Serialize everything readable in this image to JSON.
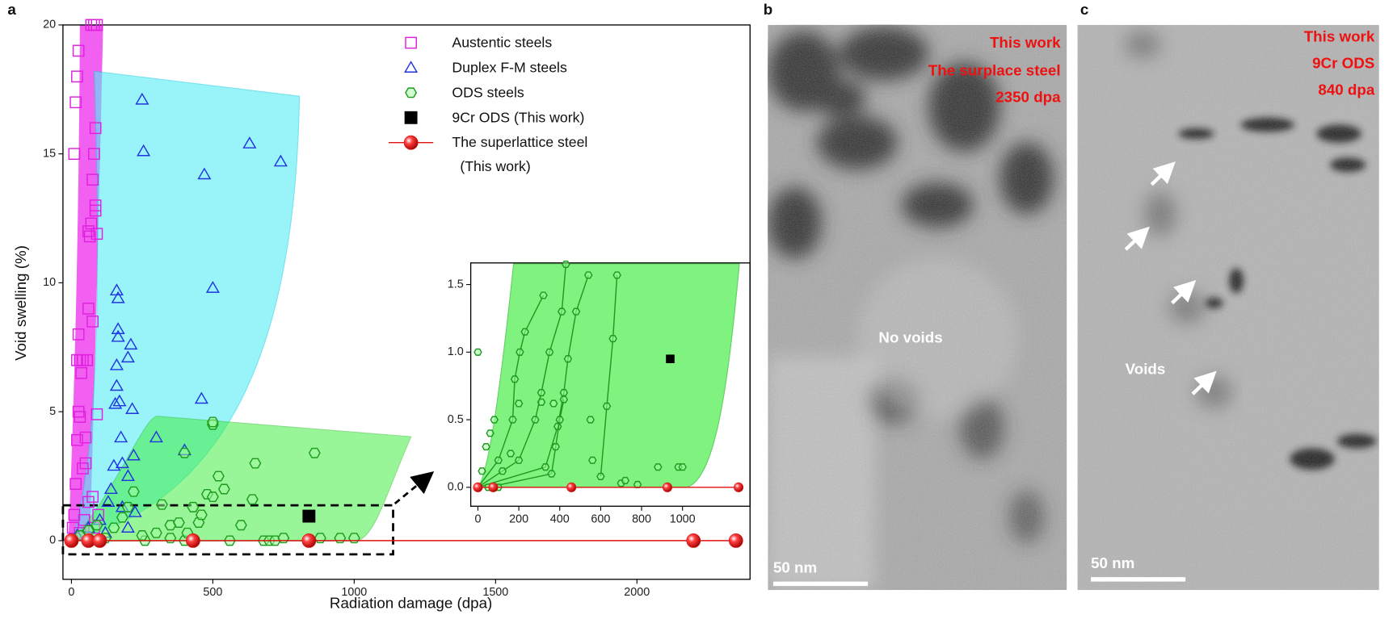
{
  "chart_data": [
    {
      "type": "scatter",
      "panel_label": "a",
      "xlabel": "Radiation damage (dpa)",
      "ylabel": "Void swelling (%)",
      "xlim": [
        -30,
        2400
      ],
      "ylim": [
        -1.5,
        20
      ],
      "xticks": [
        0,
        500,
        1000,
        1500,
        2000
      ],
      "yticks": [
        0,
        5,
        10,
        15,
        20
      ],
      "legend": "top-right",
      "series": [
        {
          "name": "Austentic steels",
          "color": "#e020e0",
          "marker": "square-open",
          "line": false,
          "x": [
            5,
            10,
            15,
            20,
            25,
            30,
            20,
            25,
            35,
            10,
            15,
            20,
            25,
            30,
            40,
            50,
            50,
            55,
            60,
            60,
            65,
            70,
            75,
            75,
            80,
            85,
            90,
            80,
            70,
            85,
            85,
            90,
            90,
            75,
            60,
            45,
            30,
            95,
            80,
            40
          ],
          "values": [
            0.5,
            1,
            2.2,
            3.9,
            5,
            4.8,
            7,
            8,
            6.5,
            15,
            17,
            18,
            19,
            7,
            7,
            3,
            4,
            7,
            9,
            12,
            11.8,
            12.3,
            8.5,
            14,
            15,
            16,
            20,
            20,
            20,
            13,
            12.8,
            11.9,
            4.9,
            1.7,
            1.5,
            0.8,
            0.3,
            1,
            0.5,
            2.8
          ]
        },
        {
          "name": "Duplex F-M steels",
          "color": "#2035e0",
          "marker": "triangle-open",
          "line": false,
          "x": [
            20,
            60,
            100,
            130,
            140,
            150,
            155,
            160,
            160,
            165,
            165,
            165,
            160,
            170,
            175,
            180,
            200,
            200,
            210,
            215,
            220,
            225,
            250,
            255,
            300,
            400,
            470,
            460,
            500,
            630,
            740,
            120,
            180,
            200
          ],
          "values": [
            0.2,
            0.5,
            0.8,
            1.5,
            2,
            2.9,
            5.3,
            6,
            6.8,
            7.9,
            8.2,
            9.4,
            9.7,
            5.4,
            4,
            3,
            2.5,
            7.1,
            7.6,
            5.1,
            3.3,
            1.1,
            17.1,
            15.1,
            4,
            3.5,
            14.2,
            5.5,
            9.8,
            15.4,
            14.7,
            0.3,
            1.3,
            0.5
          ]
        },
        {
          "name": "ODS steels",
          "color": "#1e9a1e",
          "marker": "hexagon-open",
          "line": false,
          "x": [
            30,
            60,
            90,
            120,
            150,
            180,
            200,
            220,
            260,
            300,
            320,
            350,
            380,
            400,
            400,
            410,
            430,
            450,
            480,
            500,
            500,
            500,
            520,
            540,
            560,
            600,
            640,
            650,
            680,
            700,
            720,
            750,
            860,
            880,
            950,
            1000,
            250,
            350,
            460
          ],
          "values": [
            0.2,
            0.4,
            0.6,
            0.1,
            0.5,
            0.9,
            1.3,
            1.9,
            0,
            0.3,
            1.4,
            0.6,
            0.7,
            0,
            3.4,
            0.3,
            1.3,
            0.7,
            1.8,
            4.5,
            4.6,
            1.7,
            2.5,
            2,
            0,
            0.6,
            1.6,
            3,
            0,
            0,
            0,
            0.1,
            3.4,
            0.1,
            0.1,
            0.1,
            0.2,
            0.1,
            1.0
          ]
        },
        {
          "name": "9Cr ODS (This work)",
          "color": "#000000",
          "marker": "square-filled",
          "line": false,
          "x": [
            840
          ],
          "values": [
            0.95
          ]
        },
        {
          "name": "The superlattice steel (This work)",
          "color": "#e01010",
          "marker": "sphere",
          "line": true,
          "x": [
            0,
            60,
            100,
            430,
            840,
            2200,
            2350
          ],
          "values": [
            0,
            0,
            0,
            0,
            0,
            0,
            0
          ]
        }
      ]
    },
    {
      "type": "scatter",
      "xlim": [
        -35,
        1330
      ],
      "ylim": [
        -0.14,
        1.66
      ],
      "xticks": [
        0,
        200,
        400,
        600,
        800,
        1000
      ],
      "yticks": [
        {
          "value": 0,
          "label": "0.0"
        },
        0.5,
        {
          "value": 1,
          "label": "1.0"
        },
        1.5
      ],
      "series": [
        {
          "color": "#1e9a1e",
          "marker": "hexagon-open",
          "line": true,
          "x": [
            0,
            100,
            170,
            180,
            205,
            230,
            320
          ],
          "values": [
            0,
            0.2,
            0.5,
            0.8,
            1.0,
            1.15,
            1.42
          ]
        },
        {
          "color": "#1e9a1e",
          "marker": "hexagon-open",
          "line": true,
          "x": [
            0,
            200,
            280,
            310,
            350,
            410,
            430
          ],
          "values": [
            0,
            0.2,
            0.5,
            0.7,
            1.0,
            1.3,
            1.65
          ]
        },
        {
          "color": "#1e9a1e",
          "marker": "hexagon-open",
          "line": true,
          "x": [
            0,
            330,
            390,
            420,
            440,
            480,
            540
          ],
          "values": [
            0,
            0.15,
            0.45,
            0.7,
            0.95,
            1.3,
            1.57
          ]
        },
        {
          "color": "#1e9a1e",
          "marker": "hexagon-open",
          "line": true,
          "x": [
            50,
            360,
            380,
            400,
            420
          ],
          "values": [
            0,
            0.1,
            0.3,
            0.5,
            0.65
          ]
        },
        {
          "color": "#1e9a1e",
          "marker": "hexagon-open",
          "line": true,
          "x": [
            600,
            630,
            660,
            680
          ],
          "values": [
            0.08,
            0.6,
            1.1,
            1.57
          ]
        },
        {
          "color": "#1e9a1e",
          "marker": "hexagon-open",
          "line": false,
          "x": [
            0,
            20,
            40,
            60,
            80,
            120,
            160,
            200,
            310,
            370,
            550,
            560,
            700,
            720,
            780,
            880,
            980,
            1000,
            100
          ],
          "values": [
            1,
            0.12,
            0.3,
            0.4,
            0.5,
            0.12,
            0.25,
            0.62,
            0.63,
            0.62,
            0.5,
            0.2,
            0.03,
            0.05,
            0.02,
            0.15,
            0.15,
            0.15,
            0
          ]
        },
        {
          "color": "#000000",
          "marker": "square-filled",
          "line": false,
          "x": [
            940
          ],
          "values": [
            0.95
          ]
        },
        {
          "color": "#e01010",
          "marker": "sphere",
          "line": true,
          "x": [
            0,
            75,
            457,
            926,
            1274
          ],
          "values": [
            0,
            0,
            0,
            0,
            0
          ]
        }
      ]
    }
  ],
  "panels": [
    {
      "label": "b",
      "annotations": [
        "This work",
        "The surplace steel",
        "2350 dpa"
      ],
      "center_text": "No voids",
      "scale_bar": "50 nm"
    },
    {
      "label": "c",
      "annotations": [
        "This work",
        "9Cr ODS",
        "840 dpa"
      ],
      "center_text": "Voids",
      "scale_bar": "50 nm"
    }
  ]
}
